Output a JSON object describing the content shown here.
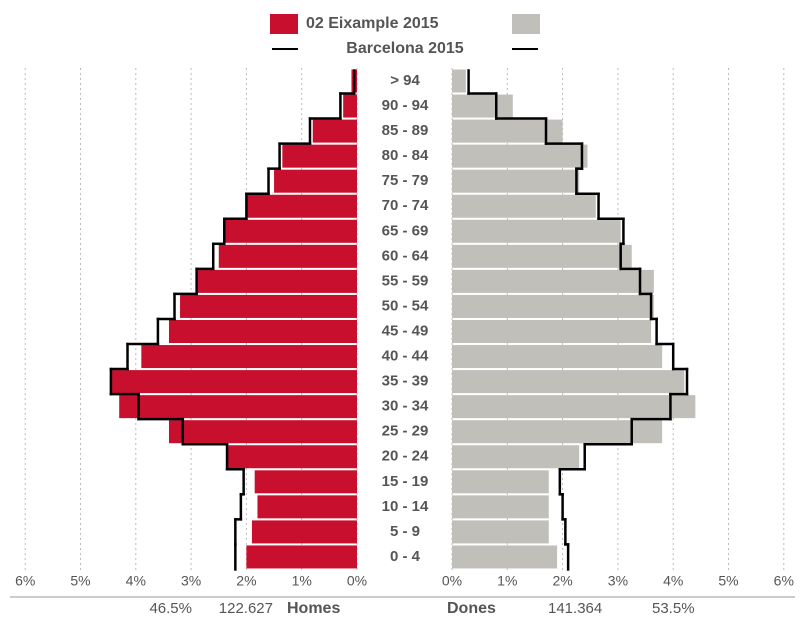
{
  "chart_data": {
    "type": "population-pyramid",
    "categories": [
      "> 94",
      "90 - 94",
      "85 - 89",
      "80 - 84",
      "75 - 79",
      "70 - 74",
      "65 - 69",
      "60 - 64",
      "55 - 59",
      "50 - 54",
      "45 - 49",
      "40 - 44",
      "35 - 39",
      "30 - 34",
      "25 - 29",
      "20 - 24",
      "15 - 19",
      "10 - 14",
      "5 - 9",
      "0 - 4"
    ],
    "series": [
      {
        "name": "02 Eixample 2015",
        "color_homes": "#c8102e",
        "color_dones": "#c0bfba",
        "homes": [
          0.1,
          0.25,
          0.8,
          1.35,
          1.5,
          2.0,
          2.4,
          2.5,
          2.9,
          3.2,
          3.4,
          3.9,
          4.45,
          4.3,
          3.4,
          2.35,
          1.85,
          1.8,
          1.9,
          2.0
        ],
        "dones": [
          0.25,
          1.1,
          2.0,
          2.45,
          2.3,
          2.6,
          3.05,
          3.25,
          3.65,
          3.65,
          3.6,
          3.8,
          4.2,
          4.4,
          3.8,
          2.3,
          1.75,
          1.75,
          1.75,
          1.9
        ]
      },
      {
        "name": "Barcelona 2015",
        "color": "#000000",
        "homes": [
          0.05,
          0.3,
          0.85,
          1.4,
          1.6,
          2.0,
          2.4,
          2.6,
          2.9,
          3.3,
          3.6,
          4.15,
          4.45,
          3.95,
          3.15,
          2.35,
          2.05,
          2.1,
          2.2,
          2.2
        ],
        "dones": [
          0.3,
          0.8,
          1.7,
          2.35,
          2.25,
          2.65,
          3.1,
          3.05,
          3.4,
          3.6,
          3.7,
          4.0,
          4.25,
          3.95,
          3.25,
          2.4,
          1.95,
          2.0,
          2.05,
          2.1
        ]
      }
    ],
    "xlim": [
      0,
      6
    ],
    "xticks": [
      {
        "value": 0,
        "label": "0%"
      },
      {
        "value": 1,
        "label": "1%"
      },
      {
        "value": 2,
        "label": "2%"
      },
      {
        "value": 3,
        "label": "3%"
      },
      {
        "value": 4,
        "label": "4%"
      },
      {
        "value": 5,
        "label": "5%"
      },
      {
        "value": 6,
        "label": "6%"
      }
    ],
    "grid": true,
    "summary": {
      "homes": {
        "label": "Homes",
        "count": {
          "value": 122627,
          "label": "122.627"
        },
        "share": {
          "value": 46.5,
          "label": "46.5%"
        }
      },
      "dones": {
        "label": "Dones",
        "count": {
          "value": 141364,
          "label": "141.364"
        },
        "share": {
          "value": 53.5,
          "label": "53.5%"
        }
      }
    }
  }
}
